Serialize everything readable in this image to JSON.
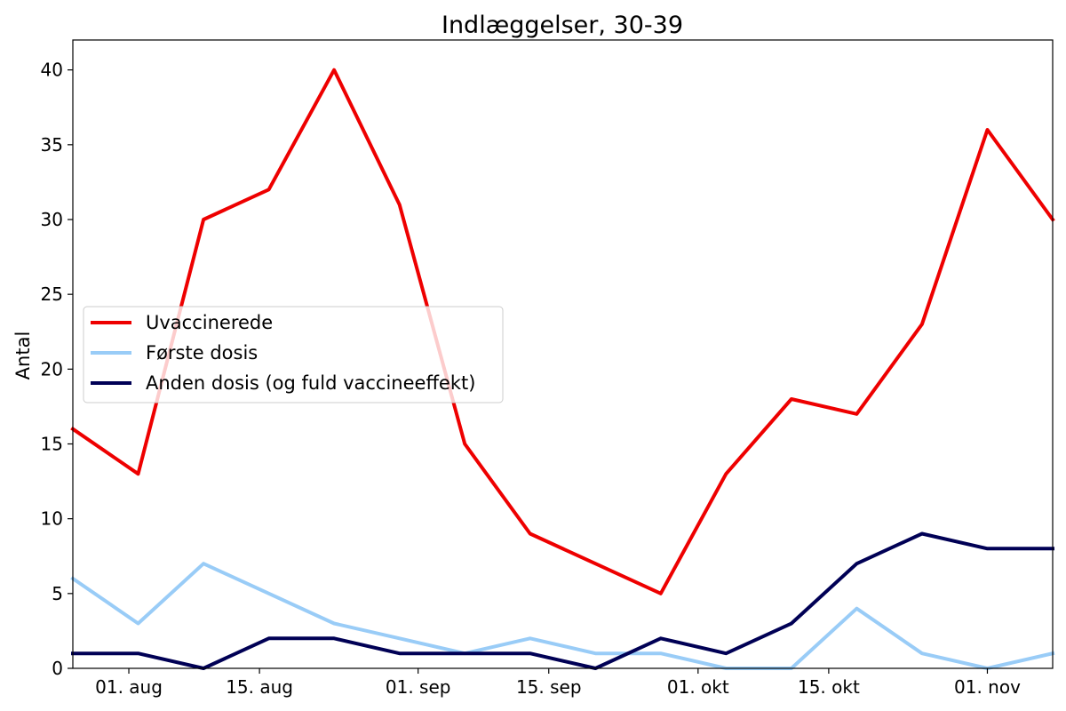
{
  "chart_data": {
    "type": "line",
    "title": "Indlæggelser, 30-39",
    "xlabel": "",
    "ylabel": "Antal",
    "x": [
      "2021-07-26",
      "2021-08-02",
      "2021-08-09",
      "2021-08-16",
      "2021-08-23",
      "2021-08-30",
      "2021-09-06",
      "2021-09-13",
      "2021-09-20",
      "2021-09-27",
      "2021-10-04",
      "2021-10-11",
      "2021-10-18",
      "2021-10-25",
      "2021-11-01",
      "2021-11-08"
    ],
    "xlim": [
      "2021-07-26",
      "2021-11-08"
    ],
    "ylim": [
      0,
      42
    ],
    "xticks": [
      {
        "date": "2021-08-01",
        "label": "01. aug"
      },
      {
        "date": "2021-08-15",
        "label": "15. aug"
      },
      {
        "date": "2021-09-01",
        "label": "01. sep"
      },
      {
        "date": "2021-09-15",
        "label": "15. sep"
      },
      {
        "date": "2021-10-01",
        "label": "01. okt"
      },
      {
        "date": "2021-10-15",
        "label": "15. okt"
      },
      {
        "date": "2021-11-01",
        "label": "01. nov"
      }
    ],
    "yticks": [
      0,
      5,
      10,
      15,
      20,
      25,
      30,
      35,
      40
    ],
    "grid": false,
    "legend_position": "center-left",
    "series": [
      {
        "name": "Uvaccinerede",
        "color": "#ee0000",
        "values": [
          16,
          13,
          30,
          32,
          40,
          31,
          15,
          9,
          7,
          5,
          13,
          18,
          17,
          23,
          36,
          30
        ]
      },
      {
        "name": "Første dosis",
        "color": "#99ccf7",
        "values": [
          6,
          3,
          7,
          5,
          3,
          2,
          1,
          2,
          1,
          1,
          0,
          0,
          4,
          1,
          0,
          1
        ]
      },
      {
        "name": "Anden dosis (og fuld vaccineeffekt)",
        "color": "#000055",
        "values": [
          1,
          1,
          0,
          2,
          2,
          1,
          1,
          1,
          0,
          2,
          1,
          3,
          7,
          9,
          8,
          8
        ]
      }
    ]
  }
}
